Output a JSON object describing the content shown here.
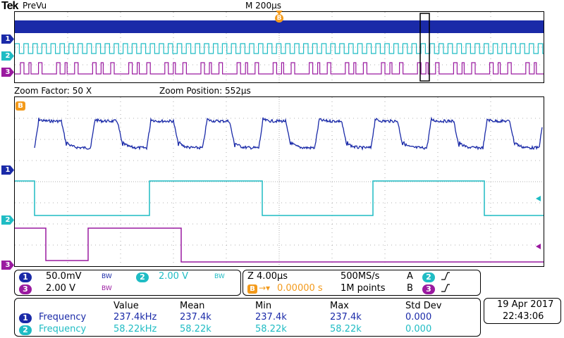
{
  "header": {
    "brand": "Tek",
    "mode": "PreVu",
    "timebase": "M 200µs"
  },
  "zoom": {
    "factor_label": "Zoom Factor: 50 X",
    "position_label": "Zoom Position: 552µs"
  },
  "markers": {
    "trigger": "B",
    "ch1": "1",
    "ch2": "2",
    "ch3": "3"
  },
  "channels": {
    "ch1": {
      "num": "1",
      "scale": "50.0mV",
      "bw": "BW",
      "color": "#1a2aa8"
    },
    "ch2": {
      "num": "2",
      "scale": "2.00 V",
      "bw": "BW",
      "color": "#1fbcc4"
    },
    "ch3": {
      "num": "3",
      "scale": "2.00 V",
      "bw": "BW",
      "color": "#9a1aa0"
    }
  },
  "acquisition": {
    "zoom_scale": "Z 4.00µs",
    "delay_marker": "B",
    "delay": "0.00000 s",
    "sample_rate": "500MS/s",
    "record_length": "1M points",
    "trig_a_label": "A",
    "trig_a_source": "2",
    "trig_b_label": "B",
    "trig_b_source": "3"
  },
  "measurements": {
    "headers": [
      "Value",
      "Mean",
      "Min",
      "Max",
      "Std Dev"
    ],
    "rows": [
      {
        "ch": "1",
        "name": "Frequency",
        "value": "237.4kHz",
        "mean": "237.4k",
        "min": "237.4k",
        "max": "237.4k",
        "std": "0.000"
      },
      {
        "ch": "2",
        "name": "Frequency",
        "value": "58.22kHz",
        "mean": "58.22k",
        "min": "58.22k",
        "max": "58.22k",
        "std": "0.000"
      }
    ]
  },
  "datetime": {
    "date": "19 Apr  2017",
    "time": "22:43:06"
  },
  "colors": {
    "trigger": "#f39a1b",
    "grid": "#999999"
  }
}
